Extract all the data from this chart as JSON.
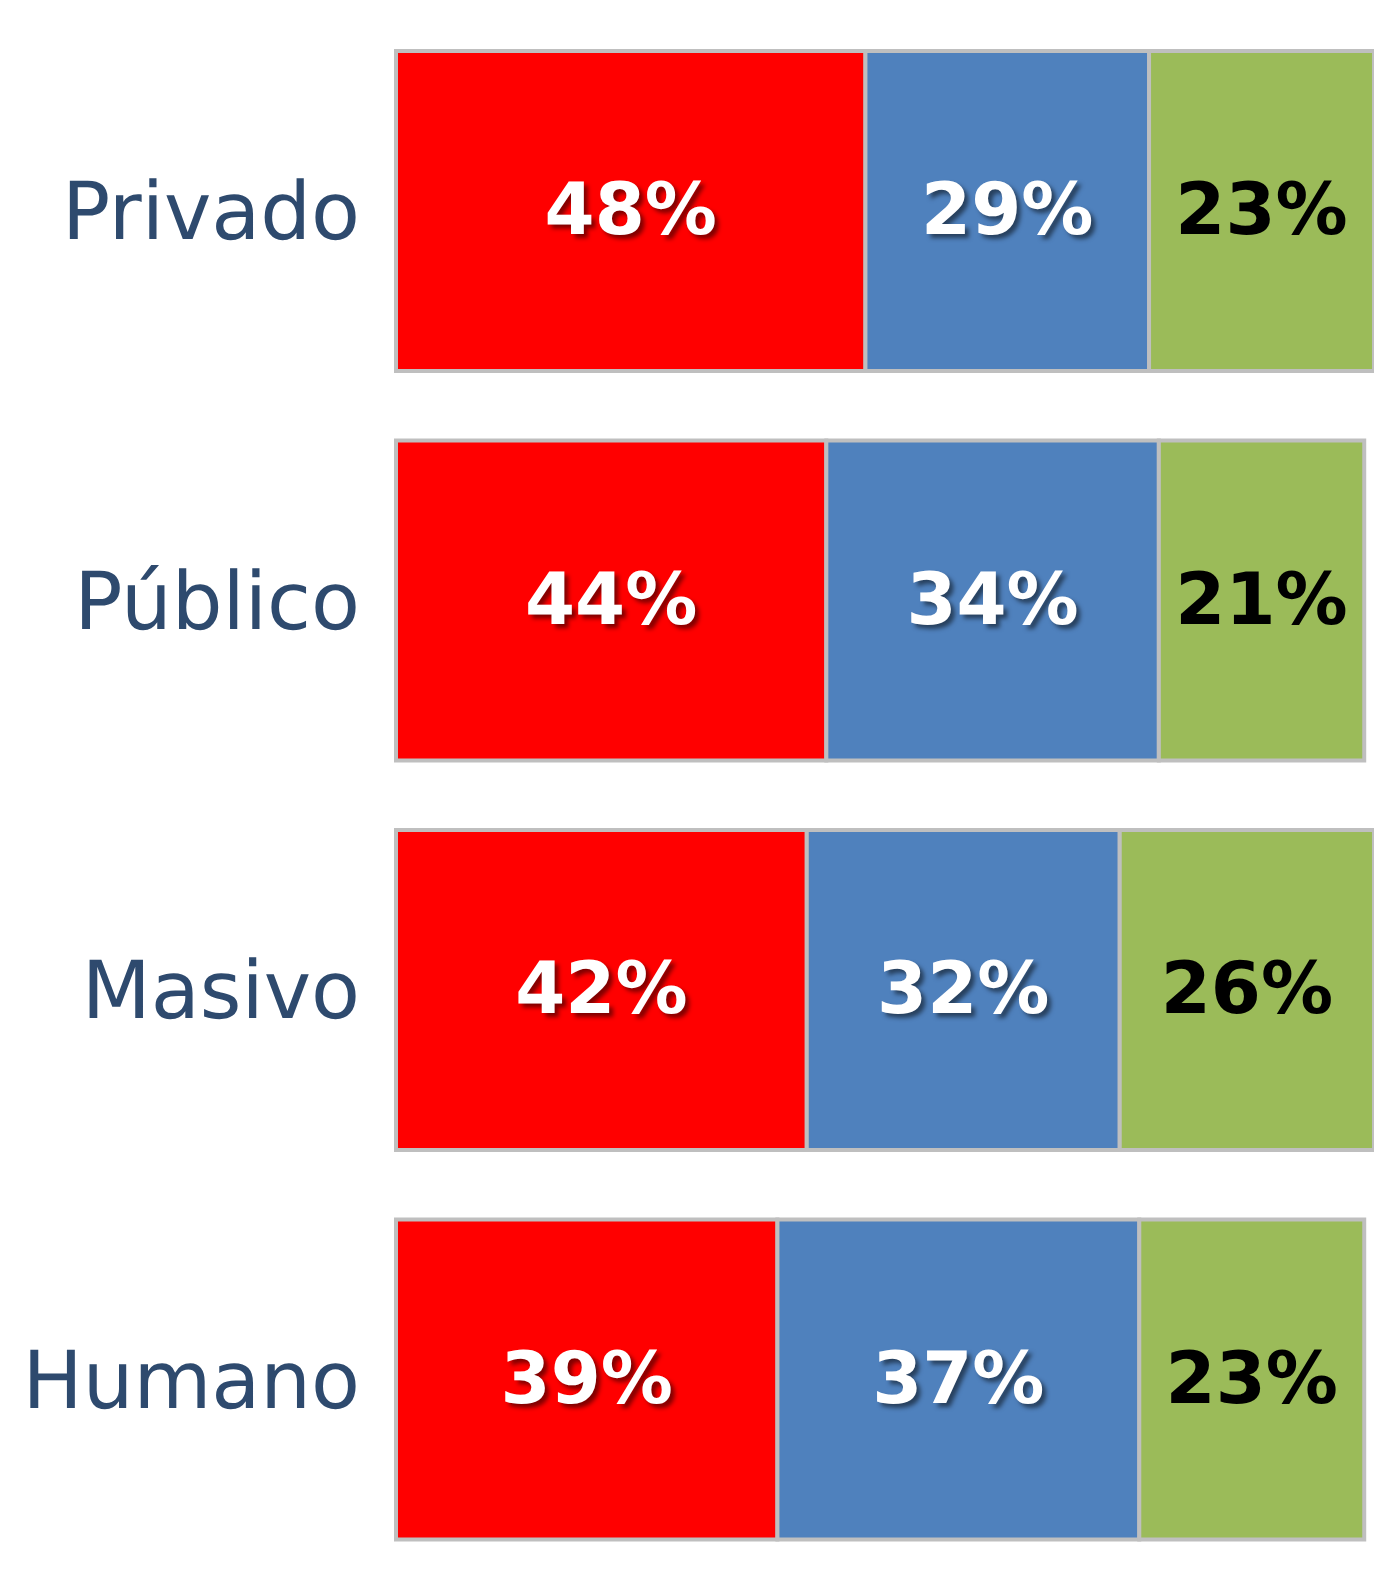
{
  "chart_data": {
    "type": "bar",
    "orientation": "horizontal",
    "stacked": true,
    "categories": [
      "Privado",
      "Público",
      "Masivo",
      "Humano"
    ],
    "series": [
      {
        "color": "#ff0000",
        "values": [
          48,
          44,
          42,
          39
        ],
        "value_labels": [
          "48%",
          "44%",
          "42%",
          "39%"
        ]
      },
      {
        "color": "#4f81bd",
        "values": [
          29,
          34,
          32,
          37
        ],
        "value_labels": [
          "29%",
          "34%",
          "32%",
          "37%"
        ]
      },
      {
        "color": "#9bbb59",
        "values": [
          23,
          21,
          26,
          23
        ],
        "value_labels": [
          "23%",
          "21%",
          "26%",
          "23%"
        ]
      }
    ]
  }
}
